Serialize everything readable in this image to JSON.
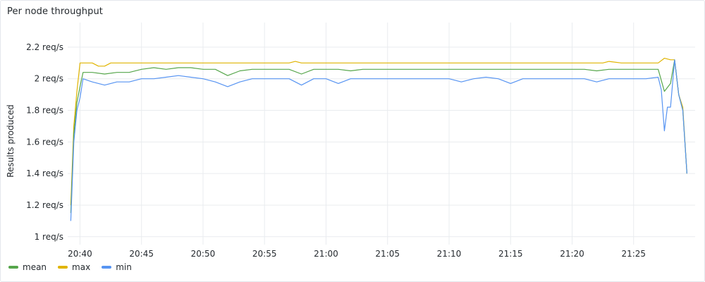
{
  "panel": {
    "title": "Per node throughput"
  },
  "chart_data": {
    "type": "line",
    "title": "Per node throughput",
    "xlabel": "",
    "ylabel": "Results produced",
    "ylim": [
      0.95,
      2.32
    ],
    "xlim": [
      "20:39",
      "21:30"
    ],
    "x_ticks": [
      "20:40",
      "20:45",
      "20:50",
      "20:55",
      "21:00",
      "21:05",
      "21:10",
      "21:15",
      "21:20",
      "21:25"
    ],
    "y_ticks": [
      {
        "value": 1.0,
        "label": "1 req/s"
      },
      {
        "value": 1.2,
        "label": "1.2 req/s"
      },
      {
        "value": 1.4,
        "label": "1.4 req/s"
      },
      {
        "value": 1.6,
        "label": "1.6 req/s"
      },
      {
        "value": 1.8,
        "label": "1.8 req/s"
      },
      {
        "value": 2.0,
        "label": "2 req/s"
      },
      {
        "value": 2.2,
        "label": "2.2 req/s"
      }
    ],
    "grid": true,
    "legend_position": "bottom-left",
    "series": [
      {
        "name": "mean",
        "color": "#56a64b",
        "points": [
          [
            "20:39:15",
            1.15
          ],
          [
            "20:39:30",
            1.65
          ],
          [
            "20:39:45",
            1.85
          ],
          [
            "20:40:00",
            1.95
          ],
          [
            "20:40:15",
            2.04
          ],
          [
            "20:41:00",
            2.04
          ],
          [
            "20:42:00",
            2.03
          ],
          [
            "20:43:00",
            2.04
          ],
          [
            "20:44:00",
            2.04
          ],
          [
            "20:45:00",
            2.06
          ],
          [
            "20:46:00",
            2.07
          ],
          [
            "20:47:00",
            2.06
          ],
          [
            "20:48:00",
            2.07
          ],
          [
            "20:49:00",
            2.07
          ],
          [
            "20:50:00",
            2.06
          ],
          [
            "20:51:00",
            2.06
          ],
          [
            "20:52:00",
            2.02
          ],
          [
            "20:53:00",
            2.05
          ],
          [
            "20:54:00",
            2.06
          ],
          [
            "20:55:00",
            2.06
          ],
          [
            "20:56:00",
            2.06
          ],
          [
            "20:57:00",
            2.06
          ],
          [
            "20:58:00",
            2.03
          ],
          [
            "20:59:00",
            2.06
          ],
          [
            "21:00:00",
            2.06
          ],
          [
            "21:01:00",
            2.06
          ],
          [
            "21:02:00",
            2.05
          ],
          [
            "21:03:00",
            2.06
          ],
          [
            "21:04:00",
            2.06
          ],
          [
            "21:05:00",
            2.06
          ],
          [
            "21:06:00",
            2.06
          ],
          [
            "21:07:00",
            2.06
          ],
          [
            "21:08:00",
            2.06
          ],
          [
            "21:09:00",
            2.06
          ],
          [
            "21:10:00",
            2.06
          ],
          [
            "21:11:00",
            2.06
          ],
          [
            "21:12:00",
            2.06
          ],
          [
            "21:13:00",
            2.06
          ],
          [
            "21:14:00",
            2.06
          ],
          [
            "21:15:00",
            2.06
          ],
          [
            "21:16:00",
            2.06
          ],
          [
            "21:17:00",
            2.06
          ],
          [
            "21:18:00",
            2.06
          ],
          [
            "21:19:00",
            2.06
          ],
          [
            "21:20:00",
            2.06
          ],
          [
            "21:21:00",
            2.06
          ],
          [
            "21:22:00",
            2.05
          ],
          [
            "21:23:00",
            2.06
          ],
          [
            "21:24:00",
            2.06
          ],
          [
            "21:25:00",
            2.06
          ],
          [
            "21:26:00",
            2.06
          ],
          [
            "21:27:00",
            2.06
          ],
          [
            "21:27:30",
            1.92
          ],
          [
            "21:28:00",
            1.97
          ],
          [
            "21:28:20",
            2.12
          ],
          [
            "21:28:40",
            1.9
          ],
          [
            "21:29:00",
            1.8
          ],
          [
            "21:29:20",
            1.4
          ]
        ]
      },
      {
        "name": "max",
        "color": "#e0b400",
        "points": [
          [
            "20:39:15",
            1.2
          ],
          [
            "20:39:30",
            1.7
          ],
          [
            "20:39:45",
            1.92
          ],
          [
            "20:40:00",
            2.1
          ],
          [
            "20:41:00",
            2.1
          ],
          [
            "20:41:30",
            2.08
          ],
          [
            "20:42:00",
            2.08
          ],
          [
            "20:42:30",
            2.1
          ],
          [
            "20:45:00",
            2.1
          ],
          [
            "20:50:00",
            2.1
          ],
          [
            "20:55:00",
            2.1
          ],
          [
            "20:57:00",
            2.1
          ],
          [
            "20:57:30",
            2.11
          ],
          [
            "20:58:00",
            2.1
          ],
          [
            "21:00:00",
            2.1
          ],
          [
            "21:05:00",
            2.1
          ],
          [
            "21:10:00",
            2.1
          ],
          [
            "21:15:00",
            2.1
          ],
          [
            "21:20:00",
            2.1
          ],
          [
            "21:22:30",
            2.1
          ],
          [
            "21:23:00",
            2.11
          ],
          [
            "21:24:00",
            2.1
          ],
          [
            "21:25:00",
            2.1
          ],
          [
            "21:27:00",
            2.1
          ],
          [
            "21:27:30",
            2.13
          ],
          [
            "21:28:00",
            2.12
          ],
          [
            "21:28:20",
            2.12
          ],
          [
            "21:28:40",
            1.9
          ],
          [
            "21:29:00",
            1.82
          ],
          [
            "21:29:20",
            1.4
          ]
        ]
      },
      {
        "name": "min",
        "color": "#5794f2",
        "points": [
          [
            "20:39:15",
            1.1
          ],
          [
            "20:39:30",
            1.6
          ],
          [
            "20:39:45",
            1.8
          ],
          [
            "20:40:00",
            1.88
          ],
          [
            "20:40:15",
            2.0
          ],
          [
            "20:41:00",
            1.98
          ],
          [
            "20:42:00",
            1.96
          ],
          [
            "20:43:00",
            1.98
          ],
          [
            "20:44:00",
            1.98
          ],
          [
            "20:45:00",
            2.0
          ],
          [
            "20:46:00",
            2.0
          ],
          [
            "20:47:00",
            2.01
          ],
          [
            "20:48:00",
            2.02
          ],
          [
            "20:49:00",
            2.01
          ],
          [
            "20:50:00",
            2.0
          ],
          [
            "20:51:00",
            1.98
          ],
          [
            "20:52:00",
            1.95
          ],
          [
            "20:53:00",
            1.98
          ],
          [
            "20:54:00",
            2.0
          ],
          [
            "20:55:00",
            2.0
          ],
          [
            "20:56:00",
            2.0
          ],
          [
            "20:57:00",
            2.0
          ],
          [
            "20:58:00",
            1.96
          ],
          [
            "20:59:00",
            2.0
          ],
          [
            "21:00:00",
            2.0
          ],
          [
            "21:01:00",
            1.97
          ],
          [
            "21:02:00",
            2.0
          ],
          [
            "21:03:00",
            2.0
          ],
          [
            "21:04:00",
            2.0
          ],
          [
            "21:05:00",
            2.0
          ],
          [
            "21:06:00",
            2.0
          ],
          [
            "21:07:00",
            2.0
          ],
          [
            "21:08:00",
            2.0
          ],
          [
            "21:09:00",
            2.0
          ],
          [
            "21:10:00",
            2.0
          ],
          [
            "21:11:00",
            1.98
          ],
          [
            "21:12:00",
            2.0
          ],
          [
            "21:13:00",
            2.01
          ],
          [
            "21:14:00",
            2.0
          ],
          [
            "21:15:00",
            1.97
          ],
          [
            "21:16:00",
            2.0
          ],
          [
            "21:17:00",
            2.0
          ],
          [
            "21:18:00",
            2.0
          ],
          [
            "21:19:00",
            2.0
          ],
          [
            "21:20:00",
            2.0
          ],
          [
            "21:21:00",
            2.0
          ],
          [
            "21:22:00",
            1.98
          ],
          [
            "21:23:00",
            2.0
          ],
          [
            "21:24:00",
            2.0
          ],
          [
            "21:25:00",
            2.0
          ],
          [
            "21:26:00",
            2.0
          ],
          [
            "21:27:00",
            2.01
          ],
          [
            "21:27:15",
            1.93
          ],
          [
            "21:27:30",
            1.67
          ],
          [
            "21:27:45",
            1.82
          ],
          [
            "21:28:00",
            1.82
          ],
          [
            "21:28:20",
            2.12
          ],
          [
            "21:28:40",
            1.9
          ],
          [
            "21:29:00",
            1.8
          ],
          [
            "21:29:20",
            1.4
          ]
        ]
      }
    ]
  }
}
